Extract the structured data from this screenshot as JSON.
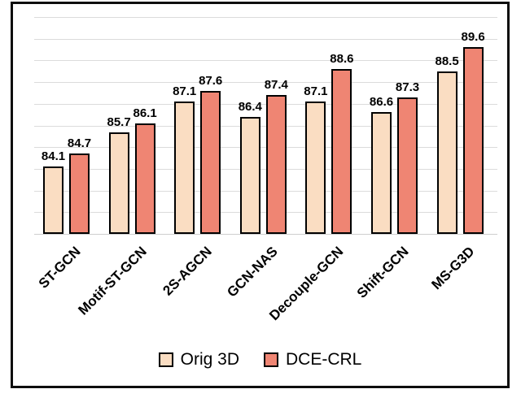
{
  "chart_data": {
    "type": "bar",
    "title": "",
    "xlabel": "",
    "ylabel": "",
    "categories": [
      "ST-GCN",
      "Motif-ST-GCN",
      "2S-AGCN",
      "GCN-NAS",
      "Decouple-GCN",
      "Shift-GCN",
      "MS-G3D"
    ],
    "series": [
      {
        "name": "Orig 3D",
        "color": "#FADDC2",
        "values": [
          84.1,
          85.7,
          87.1,
          86.4,
          87.1,
          86.6,
          88.5
        ]
      },
      {
        "name": "DCE-CRL",
        "color": "#EF8573",
        "values": [
          84.7,
          86.1,
          87.6,
          87.4,
          88.6,
          87.3,
          89.6
        ]
      }
    ],
    "ylim": [
      81,
      91
    ],
    "gridline_step": 1,
    "grid": true,
    "y_axis_labels_shown": false,
    "value_labels_shown": true,
    "legend_position": "bottom",
    "colors": {
      "bar_border": "#000000",
      "gridline": "#dbdbdb",
      "frame_border": "#0d0d0d",
      "label_text": "#000000"
    }
  }
}
